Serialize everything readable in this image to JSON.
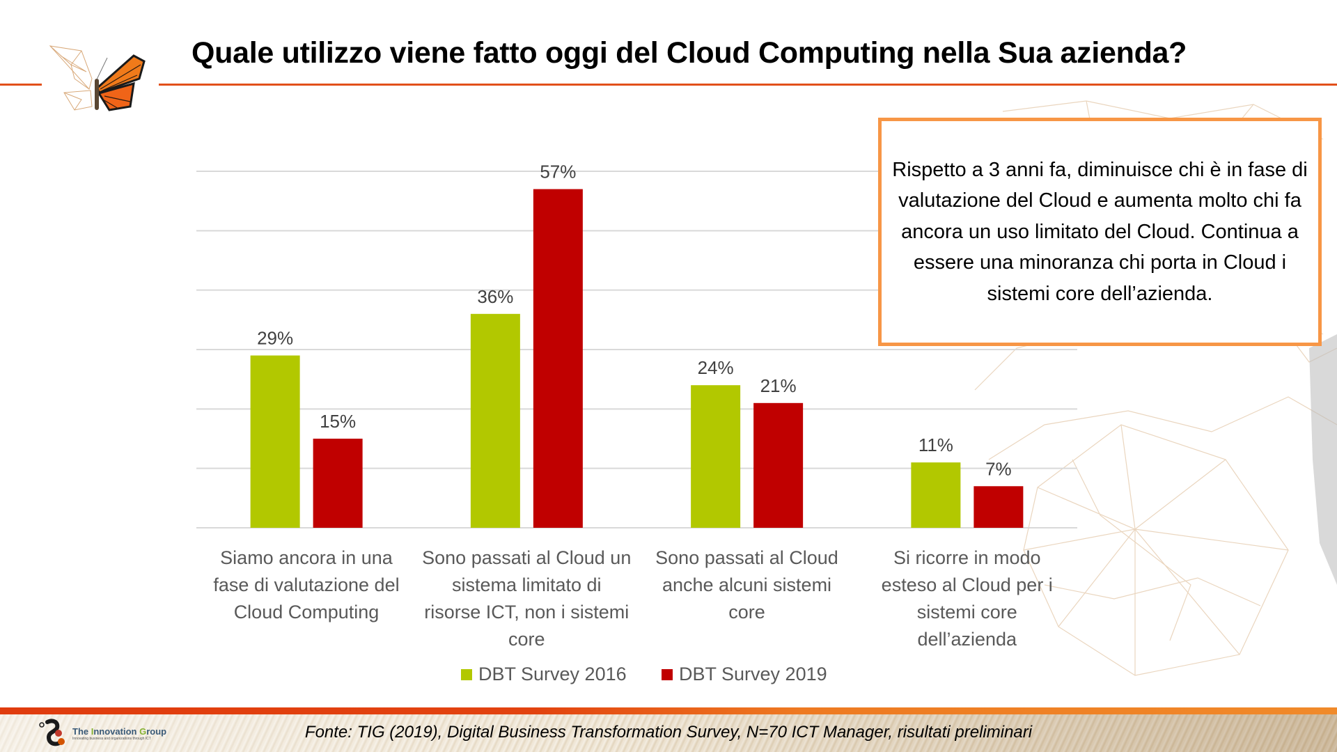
{
  "slide": {
    "title": "Quale utilizzo viene fatto oggi del Cloud Computing nella Sua azienda?",
    "callout": "Rispetto a 3 anni fa, diminuisce chi è in fase di valutazione del Cloud e aumenta molto chi fa ancora un uso limitato del Cloud. Continua a essere una minoranza chi porta in Cloud i sistemi core dell’azienda.",
    "source": "Fonte: TIG (2019), Digital Business Transformation Survey, N=70 ICT Manager, risultati preliminari",
    "logo": {
      "name_parts": [
        "The ",
        "I",
        "nnovation ",
        "G",
        "roup"
      ],
      "tagline": "Innovating business and organizations through ICT"
    },
    "colors": {
      "accent": "#E2501A",
      "callout_border": "#F79646",
      "series_2016": "#B2C800",
      "series_2019": "#C00000",
      "gridline": "#D9D9D9",
      "label_text": "#595959"
    }
  },
  "chart_data": {
    "type": "bar",
    "title": "Quale utilizzo viene fatto oggi del Cloud Computing nella Sua azienda?",
    "xlabel": "",
    "ylabel": "",
    "ylim": [
      0,
      60
    ],
    "grid": true,
    "legend_position": "bottom",
    "value_format": "percent",
    "categories": [
      "Siamo ancora in una fase di valutazione del Cloud Computing",
      "Sono passati al Cloud un sistema limitato di risorse ICT, non i sistemi core",
      "Sono passati al Cloud anche alcuni sistemi core",
      "Si ricorre in modo esteso al Cloud per i sistemi core dell’azienda"
    ],
    "category_lines": [
      [
        "Siamo ancora in una",
        "fase di valutazione del",
        "Cloud Computing"
      ],
      [
        "Sono passati al Cloud un",
        "sistema limitato di",
        "risorse ICT, non i sistemi",
        "core"
      ],
      [
        "Sono passati al Cloud",
        "anche alcuni sistemi",
        "core"
      ],
      [
        "Si ricorre in modo",
        "esteso al Cloud per i",
        "sistemi core",
        "dell’azienda"
      ]
    ],
    "series": [
      {
        "name": "DBT Survey 2016",
        "color": "#B2C800",
        "values": [
          29,
          36,
          24,
          11
        ],
        "labels": [
          "29%",
          "36%",
          "24%",
          "11%"
        ]
      },
      {
        "name": "DBT Survey 2019",
        "color": "#C00000",
        "values": [
          15,
          57,
          21,
          7
        ],
        "labels": [
          "15%",
          "57%",
          "21%",
          "7%"
        ]
      }
    ]
  }
}
